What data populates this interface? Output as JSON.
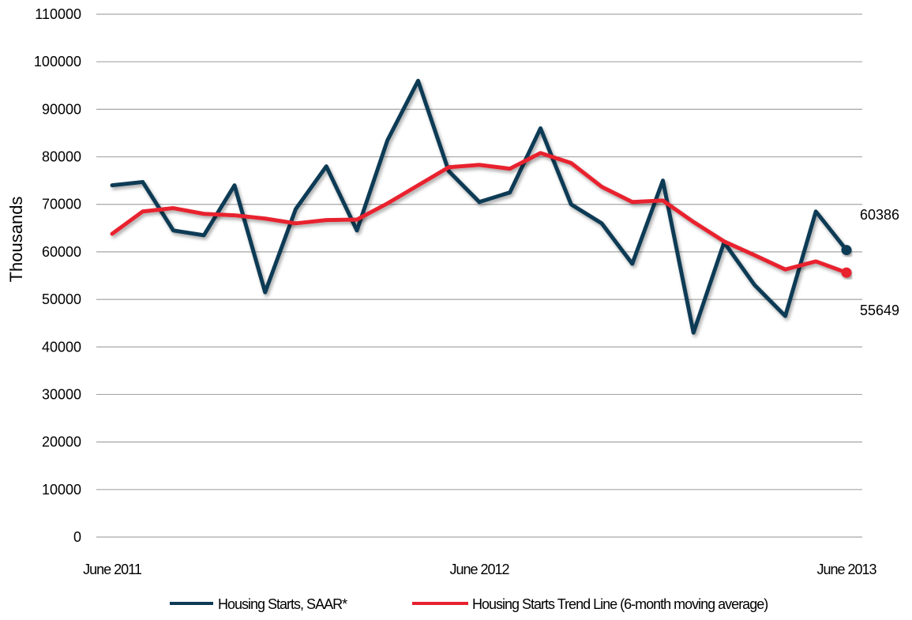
{
  "chart_data": {
    "type": "line",
    "ylabel": "Thousands",
    "ylim": [
      0,
      110000
    ],
    "yticks": [
      0,
      10000,
      20000,
      30000,
      40000,
      50000,
      60000,
      70000,
      80000,
      90000,
      100000,
      110000
    ],
    "x_tick_labels": [
      "June 2011",
      "June 2012",
      "June 2013"
    ],
    "x": [
      "2011-06",
      "2011-07",
      "2011-08",
      "2011-09",
      "2011-10",
      "2011-11",
      "2011-12",
      "2012-01",
      "2012-02",
      "2012-03",
      "2012-04",
      "2012-05",
      "2012-06",
      "2012-07",
      "2012-08",
      "2012-09",
      "2012-10",
      "2012-11",
      "2012-12",
      "2013-01",
      "2013-02",
      "2013-03",
      "2013-04",
      "2013-05",
      "2013-06"
    ],
    "grid": true,
    "legend_position": "bottom",
    "series": [
      {
        "name": "Housing Starts, SAAR*",
        "color": "#0e3a55",
        "values": [
          74000,
          74700,
          64500,
          63500,
          74000,
          51500,
          69000,
          78000,
          64500,
          83500,
          96000,
          77000,
          70500,
          72500,
          86000,
          70000,
          66000,
          57500,
          75000,
          43000,
          62000,
          53000,
          46500,
          68500,
          60386
        ],
        "end_label": "60386"
      },
      {
        "name": "Housing Starts Trend Line (6-month moving average)",
        "color": "#e8202e",
        "values": [
          63800,
          68500,
          69200,
          68000,
          67700,
          67000,
          66000,
          66700,
          66800,
          70200,
          74000,
          77800,
          78300,
          77500,
          80800,
          78700,
          73700,
          70500,
          70800,
          66300,
          62200,
          59300,
          56300,
          58000,
          55649
        ],
        "end_label": "55649"
      }
    ]
  }
}
